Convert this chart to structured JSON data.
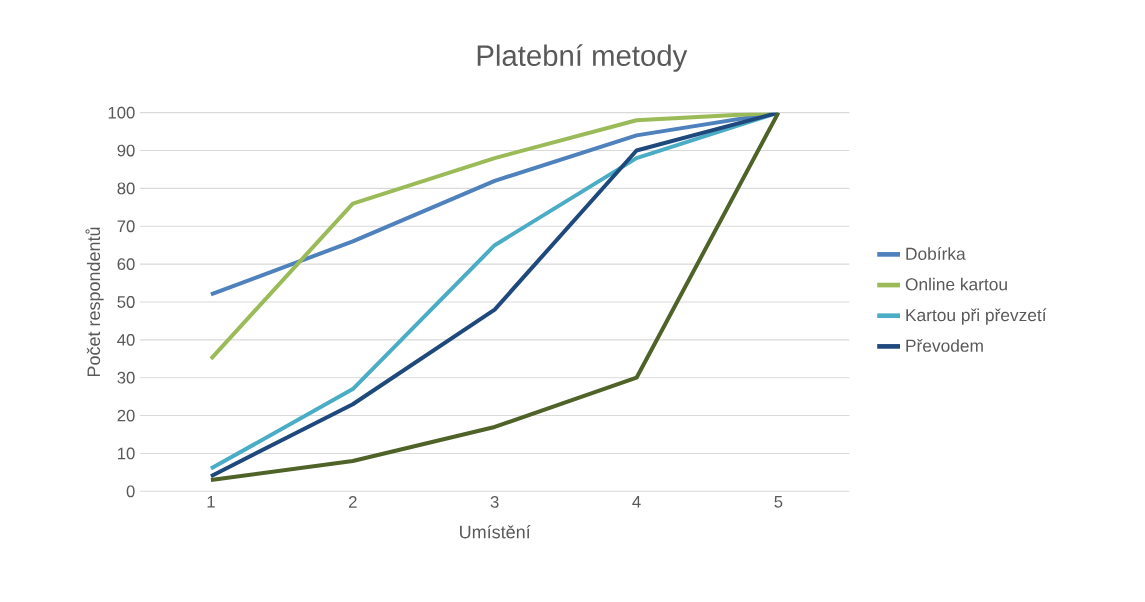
{
  "chart_data": {
    "type": "line",
    "title": "Platební metody",
    "xlabel": "Umístění",
    "ylabel": "Počet respondentů",
    "categories": [
      "1",
      "2",
      "3",
      "4",
      "5"
    ],
    "series": [
      {
        "name": "Dobírka",
        "color": "#4f81bd",
        "values": [
          52,
          66,
          82,
          94,
          100
        ]
      },
      {
        "name": "Online kartou",
        "color": "#9bbb59",
        "values": [
          35,
          76,
          88,
          98,
          100
        ]
      },
      {
        "name": "Kartou při převzetí",
        "color": "#4bacc6",
        "values": [
          6,
          27,
          65,
          88,
          100
        ]
      },
      {
        "name": "Převodem",
        "color": "#1f497d",
        "values": [
          4,
          23,
          48,
          90,
          100
        ]
      },
      {
        "color": "#4f6228",
        "values": [
          3,
          8,
          17,
          30,
          100
        ]
      }
    ],
    "ylim": [
      0,
      100
    ],
    "yticks": [
      0,
      10,
      20,
      30,
      40,
      50,
      60,
      70,
      80,
      90,
      100
    ],
    "grid": "y",
    "legend": "right",
    "marker": "none",
    "line_style": "solid"
  }
}
